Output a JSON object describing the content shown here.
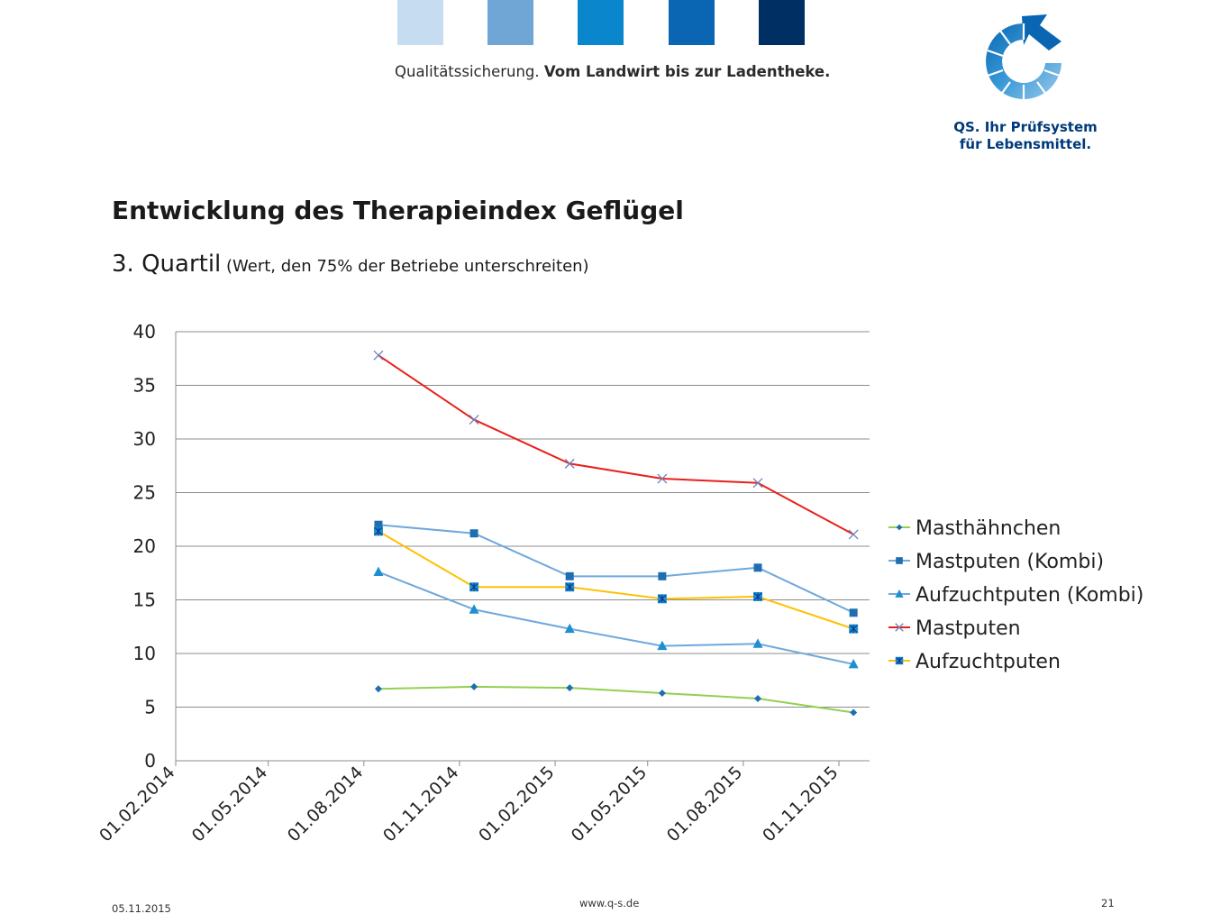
{
  "header": {
    "tagline_regular": "Qualitätssicherung. ",
    "tagline_bold": "Vom Landwirt bis zur Ladentheke.",
    "swatch_colors": [
      "#c6dcf0",
      "#6fa6d6",
      "#0a86cc",
      "#0a66b2",
      "#003063"
    ],
    "logo_line1": "QS. Ihr Prüfsystem",
    "logo_line2": "für Lebensmittel."
  },
  "slide": {
    "title": "Entwicklung des Therapieindex Geflügel",
    "subtitle_main": "3. Quartil",
    "subtitle_note": " (Wert, den 75% der Betriebe unterschreiten)"
  },
  "chart_data": {
    "type": "line",
    "title": "",
    "xlabel": "",
    "ylabel": "",
    "ylim": [
      0,
      40
    ],
    "yticks": [
      0,
      5,
      10,
      15,
      20,
      25,
      30,
      35,
      40
    ],
    "xticks": [
      "01.02.2014",
      "01.05.2014",
      "01.08.2014",
      "01.11.2014",
      "01.02.2015",
      "01.05.2015",
      "01.08.2015",
      "01.11.2015"
    ],
    "x": [
      "15.08.2014",
      "15.11.2014",
      "15.02.2015",
      "15.05.2015",
      "15.08.2015",
      "15.11.2015"
    ],
    "grid": "horizontal",
    "legend_position": "right",
    "series": [
      {
        "name": "Masthähnchen",
        "line_color": "#92d050",
        "marker": "diamond",
        "marker_color": "#1f6fb0",
        "values": [
          6.7,
          6.9,
          6.8,
          6.3,
          5.8,
          4.5
        ]
      },
      {
        "name": "Mastputen (Kombi)",
        "line_color": "#6fa8dc",
        "marker": "square",
        "marker_color": "#1f6fb0",
        "values": [
          22.0,
          21.2,
          17.2,
          17.2,
          18.0,
          13.8
        ]
      },
      {
        "name": "Aufzuchtputen (Kombi)",
        "line_color": "#6fa8dc",
        "marker": "triangle",
        "marker_color": "#1f8fd0",
        "values": [
          17.6,
          14.1,
          12.3,
          10.7,
          10.9,
          9.0
        ]
      },
      {
        "name": "Mastputen",
        "line_color": "#e8201b",
        "marker": "x",
        "marker_color": "#6e7fb8",
        "values": [
          37.8,
          31.8,
          27.7,
          26.3,
          25.9,
          21.1
        ]
      },
      {
        "name": "Aufzuchtputen",
        "line_color": "#ffc000",
        "marker": "asterisk",
        "marker_color": "#1f8fd0",
        "values": [
          21.4,
          16.2,
          16.2,
          15.1,
          15.3,
          12.3
        ]
      }
    ]
  },
  "footer": {
    "date": "05.11.2015",
    "url": "www.q-s.de",
    "page": "21"
  }
}
